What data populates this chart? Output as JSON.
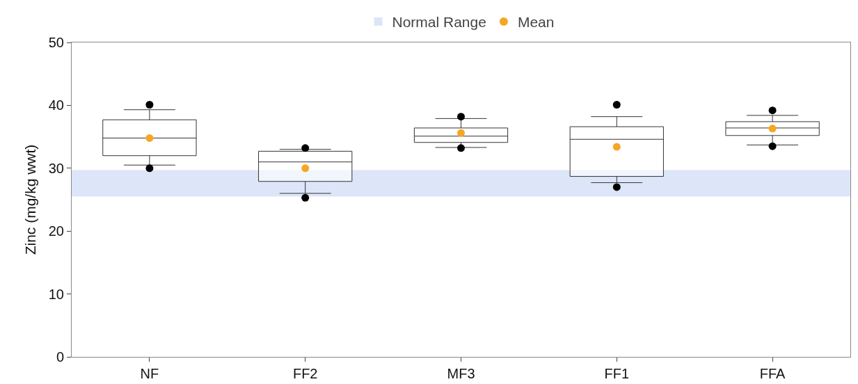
{
  "chart_data": {
    "type": "box",
    "ylabel": "Zinc (mg/kg wwt)",
    "categories": [
      "NF",
      "FF2",
      "MF3",
      "FF1",
      "FFA"
    ],
    "ylim": [
      0,
      50
    ],
    "yticks": [
      0,
      10,
      20,
      30,
      40,
      50
    ],
    "grid": false,
    "legend": "top",
    "series": [
      {
        "color": "#333333",
        "boxes": [
          {
            "low": 30.5,
            "q1": 32.0,
            "median": 34.8,
            "q3": 37.7,
            "high": 39.3,
            "outliers": [
              40.1,
              30.0
            ]
          },
          {
            "low": 26.0,
            "q1": 27.9,
            "median": 31.0,
            "q3": 32.7,
            "high": 33.0,
            "outliers": [
              33.2,
              25.3
            ]
          },
          {
            "low": 33.3,
            "q1": 34.1,
            "median": 35.1,
            "q3": 36.4,
            "high": 37.9,
            "outliers": [
              38.2,
              33.2
            ]
          },
          {
            "low": 27.7,
            "q1": 28.7,
            "median": 34.6,
            "q3": 36.6,
            "high": 38.2,
            "outliers": [
              40.1,
              27.0
            ]
          },
          {
            "low": 33.7,
            "q1": 35.2,
            "median": 36.4,
            "q3": 37.4,
            "high": 38.4,
            "outliers": [
              39.2,
              33.5
            ]
          }
        ]
      },
      {
        "type": "scatter",
        "name": "Mean",
        "color": "#f5a623",
        "x": [
          "NF",
          "FF2",
          "MF3",
          "FF1",
          "FFA"
        ],
        "values": [
          34.8,
          30.0,
          35.6,
          33.4,
          36.3
        ]
      }
    ],
    "bands": [
      {
        "axis": "y",
        "from": 25.5,
        "to": 29.7,
        "label": "Normal Range",
        "color": "#dde5f8"
      }
    ]
  }
}
